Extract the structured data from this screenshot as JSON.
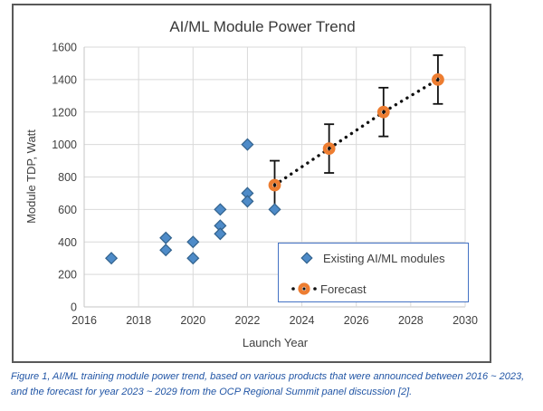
{
  "figure": {
    "caption": "Figure 1, AI/ML training module power trend, based on various products that were announced between 2016 ~ 2023, and the forecast for year 2023 ~ 2029 from the OCP Regional Summit panel discussion [2]."
  },
  "colors": {
    "existing_fill": "#4E8BC8",
    "existing_edge": "#31618C",
    "forecast_orange": "#ED7D31",
    "trend_black": "#111111",
    "legend_border": "#4472C4",
    "caption_blue": "#2155A5",
    "gridline": "#D9D9D9",
    "axis_line": "#C6C6C6",
    "axis_text": "#404040",
    "figure_border": "#595959"
  },
  "chart_data": {
    "type": "scatter",
    "title": "AI/ML Module Power Trend",
    "xlabel": "Launch Year",
    "ylabel": "Module TDP, Watt",
    "xlim": [
      2016,
      2030
    ],
    "ylim": [
      0,
      1600
    ],
    "xticks": [
      2016,
      2018,
      2020,
      2022,
      2024,
      2026,
      2028,
      2030
    ],
    "yticks": [
      0,
      200,
      400,
      600,
      800,
      1000,
      1200,
      1400,
      1600
    ],
    "grid": true,
    "legend_position": "inside-bottom-right",
    "series": [
      {
        "name": "Existing AI/ML modules",
        "type": "scatter",
        "marker": "diamond",
        "fill": "#4E8BC8",
        "edge": "#31618C",
        "points": [
          {
            "x": 2017,
            "y": 300
          },
          {
            "x": 2019,
            "y": 425
          },
          {
            "x": 2019,
            "y": 350
          },
          {
            "x": 2020,
            "y": 400
          },
          {
            "x": 2020,
            "y": 300
          },
          {
            "x": 2021,
            "y": 600
          },
          {
            "x": 2021,
            "y": 500
          },
          {
            "x": 2021,
            "y": 450
          },
          {
            "x": 2022,
            "y": 1000
          },
          {
            "x": 2022,
            "y": 700
          },
          {
            "x": 2022,
            "y": 650
          },
          {
            "x": 2023,
            "y": 600
          }
        ]
      },
      {
        "name": "Forecast",
        "type": "line-scatter",
        "marker": "ring",
        "line_style": "dotted",
        "color": "#ED7D31",
        "line_color": "#111111",
        "points": [
          {
            "x": 2023,
            "y": 750,
            "err_low": 600,
            "err_high": 900
          },
          {
            "x": 2025,
            "y": 975,
            "err_low": 825,
            "err_high": 1125
          },
          {
            "x": 2027,
            "y": 1200,
            "err_low": 1050,
            "err_high": 1350
          },
          {
            "x": 2029,
            "y": 1400,
            "err_low": 1250,
            "err_high": 1550
          }
        ]
      }
    ]
  }
}
